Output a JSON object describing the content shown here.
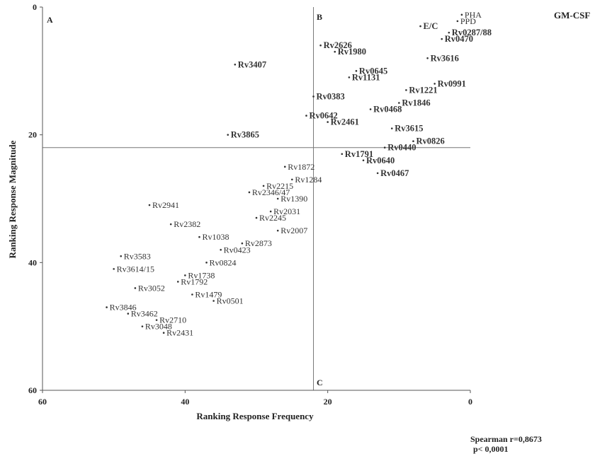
{
  "chart_data": {
    "type": "scatter",
    "title": "GM-CSF",
    "xlabel": "Ranking Response Frequency",
    "ylabel": "Ranking Response Magnitude",
    "xlim": [
      60,
      0
    ],
    "ylim": [
      60,
      0
    ],
    "x_ticks": [
      "60",
      "40",
      "20",
      "0"
    ],
    "y_ticks": [
      "0",
      "20",
      "40",
      "60"
    ],
    "quadrant_labels": [
      "A",
      "B",
      "C"
    ],
    "threshold_x": 22,
    "threshold_y": 22,
    "points": [
      {
        "label": "PHA",
        "x": 1.2,
        "y": 1.2,
        "bold": false
      },
      {
        "label": "PPD",
        "x": 1.8,
        "y": 2.2,
        "bold": false
      },
      {
        "label": "E/C",
        "x": 7,
        "y": 3,
        "bold": true
      },
      {
        "label": "Rv0287/88",
        "x": 3,
        "y": 4,
        "bold": true
      },
      {
        "label": "Rv0470",
        "x": 4,
        "y": 5,
        "bold": true
      },
      {
        "label": "Rv2626",
        "x": 21,
        "y": 6,
        "bold": true
      },
      {
        "label": "Rv1980",
        "x": 19,
        "y": 7,
        "bold": true
      },
      {
        "label": "Rv3616",
        "x": 6,
        "y": 8,
        "bold": true
      },
      {
        "label": "Rv3407",
        "x": 33,
        "y": 9,
        "bold": true
      },
      {
        "label": "Rv0645",
        "x": 16,
        "y": 10,
        "bold": true
      },
      {
        "label": "Rv1131",
        "x": 17,
        "y": 11,
        "bold": true
      },
      {
        "label": "Rv0991",
        "x": 5,
        "y": 12,
        "bold": true
      },
      {
        "label": "Rv1221",
        "x": 9,
        "y": 13,
        "bold": true
      },
      {
        "label": "Rv0383",
        "x": 22,
        "y": 14,
        "bold": true
      },
      {
        "label": "Rv1846",
        "x": 10,
        "y": 15,
        "bold": true
      },
      {
        "label": "Rv0468",
        "x": 14,
        "y": 16,
        "bold": true
      },
      {
        "label": "Rv0642",
        "x": 23,
        "y": 17,
        "bold": true
      },
      {
        "label": "Rv2461",
        "x": 20,
        "y": 18,
        "bold": true
      },
      {
        "label": "Rv3615",
        "x": 11,
        "y": 19,
        "bold": true
      },
      {
        "label": "Rv3865",
        "x": 34,
        "y": 20,
        "bold": true
      },
      {
        "label": "Rv0826",
        "x": 8,
        "y": 21,
        "bold": true
      },
      {
        "label": "Rv0440",
        "x": 12,
        "y": 22,
        "bold": true
      },
      {
        "label": "Rv1791",
        "x": 18,
        "y": 23,
        "bold": true
      },
      {
        "label": "Rv0640",
        "x": 15,
        "y": 24,
        "bold": true
      },
      {
        "label": "Rv1872",
        "x": 26,
        "y": 25,
        "bold": false
      },
      {
        "label": "Rv0467",
        "x": 13,
        "y": 26,
        "bold": true
      },
      {
        "label": "Rv1284",
        "x": 25,
        "y": 27,
        "bold": false
      },
      {
        "label": "Rv2215",
        "x": 29,
        "y": 28,
        "bold": false
      },
      {
        "label": "Rv2346/47",
        "x": 31,
        "y": 29,
        "bold": false
      },
      {
        "label": "Rv1390",
        "x": 27,
        "y": 30,
        "bold": false
      },
      {
        "label": "Rv2941",
        "x": 45,
        "y": 31,
        "bold": false
      },
      {
        "label": "Rv2031",
        "x": 28,
        "y": 32,
        "bold": false
      },
      {
        "label": "Rv2245",
        "x": 30,
        "y": 33,
        "bold": false
      },
      {
        "label": "Rv2382",
        "x": 42,
        "y": 34,
        "bold": false
      },
      {
        "label": "Rv2007",
        "x": 27,
        "y": 35,
        "bold": false
      },
      {
        "label": "Rv1038",
        "x": 38,
        "y": 36,
        "bold": false
      },
      {
        "label": "Rv2873",
        "x": 32,
        "y": 37,
        "bold": false
      },
      {
        "label": "Rv0423",
        "x": 35,
        "y": 38,
        "bold": false
      },
      {
        "label": "Rv3583",
        "x": 49,
        "y": 39,
        "bold": false
      },
      {
        "label": "Rv0824",
        "x": 37,
        "y": 40,
        "bold": false
      },
      {
        "label": "Rv3614/15",
        "x": 50,
        "y": 41,
        "bold": false
      },
      {
        "label": "Rv1738",
        "x": 40,
        "y": 42,
        "bold": false
      },
      {
        "label": "Rv1792",
        "x": 41,
        "y": 43,
        "bold": false
      },
      {
        "label": "Rv3052",
        "x": 47,
        "y": 44,
        "bold": false
      },
      {
        "label": "Rv1479",
        "x": 39,
        "y": 45,
        "bold": false
      },
      {
        "label": "Rv0501",
        "x": 36,
        "y": 46,
        "bold": false
      },
      {
        "label": "Rv3846",
        "x": 51,
        "y": 47,
        "bold": false
      },
      {
        "label": "Rv3462",
        "x": 48,
        "y": 48,
        "bold": false
      },
      {
        "label": "Rv2710",
        "x": 44,
        "y": 49,
        "bold": false
      },
      {
        "label": "Rv3048",
        "x": 46,
        "y": 50,
        "bold": false
      },
      {
        "label": "Rv2431",
        "x": 43,
        "y": 51,
        "bold": false
      }
    ],
    "annotation": {
      "line1": "Spearman r=0,8673",
      "line2": "p< 0,0001"
    }
  }
}
